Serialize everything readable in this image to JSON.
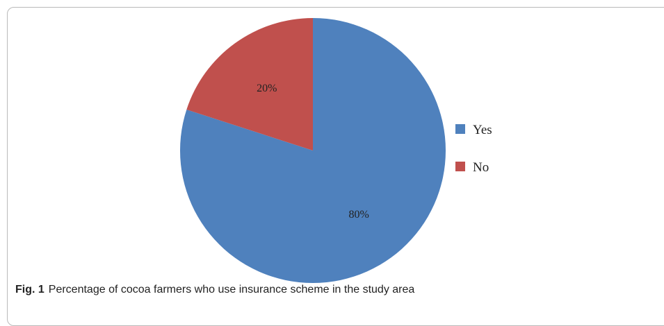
{
  "caption": {
    "figure_number": "Fig. 1",
    "text": "Percentage of cocoa farmers who use insurance scheme in the study area"
  },
  "chart_data": {
    "type": "pie",
    "title": "",
    "categories": [
      "Yes",
      "No"
    ],
    "values": [
      80,
      20
    ],
    "data_labels": [
      "80%",
      "20%"
    ],
    "colors": [
      "#4f81bd",
      "#c0504d"
    ],
    "start": "12 o'clock",
    "direction": "clockwise",
    "legend": {
      "placement": "right",
      "entries": [
        "Yes",
        "No"
      ]
    }
  }
}
